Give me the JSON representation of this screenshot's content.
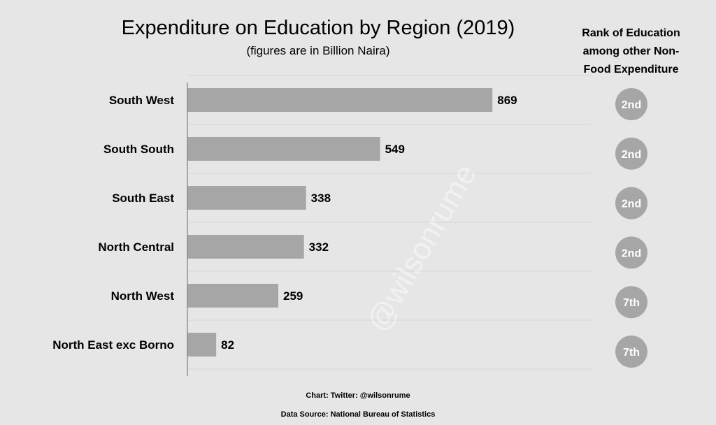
{
  "chart_data": {
    "type": "bar",
    "orientation": "horizontal",
    "title": "Expenditure on Education by Region (2019)",
    "subtitle": "(figures are in Billion Naira)",
    "categories": [
      "South West",
      "South South",
      "South East",
      "North Central",
      "North West",
      "North East exc Borno"
    ],
    "values": [
      869,
      549,
      338,
      332,
      259,
      82
    ],
    "xlim": [
      0,
      1000
    ],
    "grid": true,
    "bar_color": "#a6a6a6",
    "rank_column": {
      "header": "Rank of Education among other Non-Food Expenditure",
      "values": [
        "2nd",
        "2nd",
        "2nd",
        "2nd",
        "7th",
        "7th"
      ],
      "circle_color": "#a6a6a6",
      "text_color": "#ffffff"
    }
  },
  "credit": "Chart: Twitter: @wilsonrume",
  "source": "Data Source: National Bureau of Statistics",
  "watermark": "@wilsonrume"
}
